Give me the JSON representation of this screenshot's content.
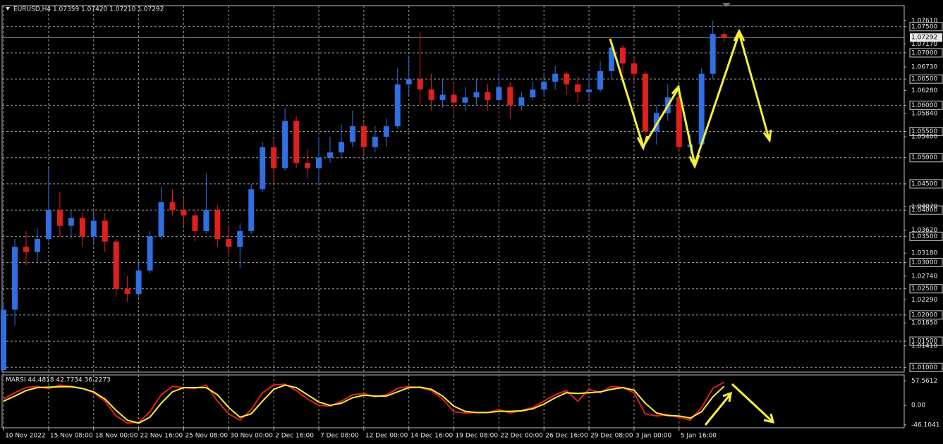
{
  "chart_data": {
    "type": "candlestick",
    "title": "EURUSD,H4  1.07359 1.07420 1.07210 1.07292",
    "up_color": "#2f6fe0",
    "down_color": "#e0201c",
    "grid": true,
    "xlim": [
      -0.13,
      80.0
    ],
    "xticks": [
      {
        "value": 0,
        "label": "10 Nov 2022"
      },
      {
        "value": 4,
        "label": "15 Nov 08:00"
      },
      {
        "value": 8,
        "label": "18 Nov 00:00"
      },
      {
        "value": 12,
        "label": "22 Nov 16:00"
      },
      {
        "value": 16,
        "label": "25 Nov 08:00"
      },
      {
        "value": 20,
        "label": "30 Nov 00:00"
      },
      {
        "value": 24,
        "label": "2 Dec 16:00"
      },
      {
        "value": 28,
        "label": "7 Dec 08:00"
      },
      {
        "value": 32,
        "label": "12 Dec 00:00"
      },
      {
        "value": 36,
        "label": "14 Dec 16:00"
      },
      {
        "value": 40,
        "label": "19 Dec 08:00"
      },
      {
        "value": 44,
        "label": "22 Dec 00:00"
      },
      {
        "value": 48,
        "label": "26 Dec 16:00"
      },
      {
        "value": 52,
        "label": "29 Dec 08:00"
      },
      {
        "value": 56,
        "label": "3 Jan 00:00"
      },
      {
        "value": 60,
        "label": "5 Jan 16:00"
      }
    ],
    "ylim": [
      1.0091,
      1.079
    ],
    "yticks": [
      {
        "value": 1.075,
        "label": "1.07500"
      },
      {
        "value": 1.07,
        "label": "1.07000"
      },
      {
        "value": 1.065,
        "label": "1.06500"
      },
      {
        "value": 1.06,
        "label": "1.06000"
      },
      {
        "value": 1.055,
        "label": "1.05500"
      },
      {
        "value": 1.05,
        "label": "1.05000"
      },
      {
        "value": 1.045,
        "label": "1.04500"
      },
      {
        "value": 1.04,
        "label": "1.04000"
      },
      {
        "value": 1.035,
        "label": "1.03500"
      },
      {
        "value": 1.03,
        "label": "1.03000"
      },
      {
        "value": 1.025,
        "label": "1.02500"
      },
      {
        "value": 1.02,
        "label": "1.02000"
      },
      {
        "value": 1.015,
        "label": "1.01500"
      },
      {
        "value": 1.01,
        "label": "1.01000"
      }
    ],
    "ylabels": [
      {
        "value": 1.0761,
        "label": "1.07610"
      },
      {
        "value": 1.0717,
        "label": "1.07170"
      },
      {
        "value": 1.0673,
        "label": "1.06730"
      },
      {
        "value": 1.0628,
        "label": "1.06280"
      },
      {
        "value": 1.0584,
        "label": "1.05840"
      },
      {
        "value": 1.054,
        "label": "1.05400"
      },
      {
        "value": 1.0407,
        "label": "1.04070"
      },
      {
        "value": 1.0362,
        "label": "1.03620"
      },
      {
        "value": 1.0318,
        "label": "1.03180"
      },
      {
        "value": 1.0274,
        "label": "1.02740"
      },
      {
        "value": 1.0229,
        "label": "1.02290"
      },
      {
        "value": 1.0185,
        "label": "1.01850"
      },
      {
        "value": 1.0141,
        "label": "1.01410"
      }
    ],
    "last_price": 1.07292,
    "candles": [
      [
        1.0095,
        1.0225,
        1.008,
        1.021
      ],
      [
        1.021,
        1.0345,
        1.018,
        1.033
      ],
      [
        1.033,
        1.036,
        1.0295,
        1.032
      ],
      [
        1.032,
        1.0365,
        1.03,
        1.0345
      ],
      [
        1.0345,
        1.048,
        1.034,
        1.04
      ],
      [
        1.04,
        1.0435,
        1.035,
        1.037
      ],
      [
        1.037,
        1.04,
        1.0345,
        1.0385
      ],
      [
        1.0385,
        1.0395,
        1.033,
        1.035
      ],
      [
        1.035,
        1.04,
        1.0335,
        1.038
      ],
      [
        1.038,
        1.0395,
        1.032,
        1.034
      ],
      [
        1.034,
        1.0345,
        1.0235,
        1.025
      ],
      [
        1.025,
        1.0275,
        1.0225,
        1.024
      ],
      [
        1.024,
        1.03,
        1.0235,
        1.0285
      ],
      [
        1.0285,
        1.036,
        1.028,
        1.035
      ],
      [
        1.035,
        1.0445,
        1.0345,
        1.0415
      ],
      [
        1.0415,
        1.044,
        1.039,
        1.04
      ],
      [
        1.04,
        1.0425,
        1.037,
        1.039
      ],
      [
        1.039,
        1.04,
        1.034,
        1.036
      ],
      [
        1.036,
        1.047,
        1.0355,
        1.04
      ],
      [
        1.04,
        1.041,
        1.033,
        1.0345
      ],
      [
        1.0345,
        1.037,
        1.031,
        1.033
      ],
      [
        1.033,
        1.0375,
        1.029,
        1.036
      ],
      [
        1.036,
        1.045,
        1.0355,
        1.044
      ],
      [
        1.044,
        1.053,
        1.0435,
        1.052
      ],
      [
        1.052,
        1.0535,
        1.045,
        1.048
      ],
      [
        1.048,
        1.0595,
        1.0475,
        1.057
      ],
      [
        1.057,
        1.058,
        1.048,
        1.049
      ],
      [
        1.049,
        1.0515,
        1.046,
        1.048
      ],
      [
        1.048,
        1.054,
        1.045,
        1.05
      ],
      [
        1.05,
        1.054,
        1.049,
        1.051
      ],
      [
        1.051,
        1.0565,
        1.05,
        1.053
      ],
      [
        1.053,
        1.059,
        1.052,
        1.056
      ],
      [
        1.056,
        1.057,
        1.0505,
        1.052
      ],
      [
        1.052,
        1.056,
        1.051,
        1.054
      ],
      [
        1.054,
        1.0575,
        1.052,
        1.056
      ],
      [
        1.056,
        1.067,
        1.0555,
        1.064
      ],
      [
        1.064,
        1.0695,
        1.062,
        1.065
      ],
      [
        1.065,
        1.074,
        1.06,
        1.063
      ],
      [
        1.063,
        1.066,
        1.059,
        1.061
      ],
      [
        1.061,
        1.065,
        1.0595,
        1.062
      ],
      [
        1.062,
        1.064,
        1.058,
        1.0605
      ],
      [
        1.0605,
        1.0635,
        1.059,
        1.0615
      ],
      [
        1.0615,
        1.065,
        1.06,
        1.0625
      ],
      [
        1.0625,
        1.064,
        1.059,
        1.061
      ],
      [
        1.061,
        1.066,
        1.0605,
        1.0635
      ],
      [
        1.0635,
        1.0645,
        1.0575,
        1.06
      ],
      [
        1.06,
        1.0625,
        1.059,
        1.0615
      ],
      [
        1.0615,
        1.0645,
        1.061,
        1.063
      ],
      [
        1.063,
        1.066,
        1.062,
        1.0645
      ],
      [
        1.0645,
        1.0675,
        1.063,
        1.066
      ],
      [
        1.066,
        1.0665,
        1.062,
        1.064
      ],
      [
        1.064,
        1.0655,
        1.0605,
        1.0625
      ],
      [
        1.0625,
        1.066,
        1.061,
        1.063
      ],
      [
        1.063,
        1.0685,
        1.0625,
        1.0665
      ],
      [
        1.0665,
        1.0725,
        1.065,
        1.071
      ],
      [
        1.071,
        1.0715,
        1.066,
        1.068
      ],
      [
        1.068,
        1.069,
        1.064,
        1.066
      ],
      [
        1.066,
        1.0665,
        1.053,
        1.055
      ],
      [
        1.055,
        1.06,
        1.0525,
        1.0585
      ],
      [
        1.0585,
        1.064,
        1.057,
        1.0615
      ],
      [
        1.0615,
        1.0625,
        1.051,
        1.052
      ],
      [
        1.052,
        1.0545,
        1.049,
        1.0525
      ],
      [
        1.0525,
        1.067,
        1.052,
        1.066
      ],
      [
        1.066,
        1.0761,
        1.065,
        1.0736
      ],
      [
        1.0736,
        1.0742,
        1.0721,
        1.0729
      ]
    ],
    "indicator": {
      "type": "line",
      "label": "MARSI 44.4818 42.7734 36.2273",
      "ylim": [
        -53,
        72
      ],
      "yticks": [
        57.5612,
        {
          "value": 0,
          "label": "0.00"
        },
        -46.1041
      ],
      "series": [
        {
          "color": "#e0201c",
          "values": [
            15,
            30,
            42,
            45,
            40,
            48,
            45,
            40,
            30,
            10,
            -25,
            -42,
            -40,
            -15,
            25,
            45,
            42,
            40,
            48,
            10,
            -20,
            -35,
            -10,
            30,
            48,
            50,
            35,
            15,
            0,
            -2,
            10,
            25,
            28,
            20,
            25,
            40,
            45,
            42,
            35,
            15,
            -15,
            -18,
            -17,
            -17,
            -10,
            -18,
            -12,
            -5,
            10,
            25,
            35,
            10,
            38,
            30,
            45,
            42,
            30,
            -20,
            -25,
            -22,
            -28,
            -35,
            -5,
            40,
            55
          ]
        },
        {
          "color": "#f5f03a",
          "values": [
            10,
            22,
            35,
            42,
            43,
            44,
            44,
            40,
            32,
            15,
            -12,
            -35,
            -42,
            -28,
            5,
            32,
            42,
            42,
            42,
            25,
            -5,
            -28,
            -20,
            10,
            38,
            48,
            42,
            25,
            8,
            0,
            5,
            18,
            24,
            22,
            22,
            32,
            42,
            43,
            38,
            22,
            -2,
            -14,
            -17,
            -17,
            -14,
            -14,
            -13,
            -8,
            3,
            18,
            30,
            28,
            30,
            32,
            38,
            42,
            36,
            5,
            -18,
            -24,
            -25,
            -30,
            -15,
            20,
            45
          ]
        }
      ]
    }
  }
}
